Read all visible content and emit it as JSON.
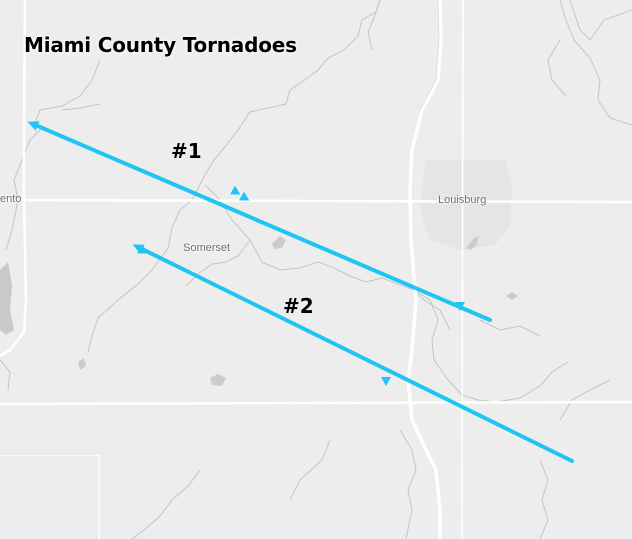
{
  "map": {
    "title": "Miami County Tornadoes",
    "places": {
      "louisburg": "Louisburg",
      "somerset": "Somerset",
      "paola_partial": "ento"
    },
    "tracks": [
      {
        "label": "#1"
      },
      {
        "label": "#2"
      }
    ],
    "colors": {
      "background": "#ededed",
      "track": "#1ec4f4",
      "road": "#ffffff",
      "stream": "#c2c2c2",
      "water": "#c9c9c9",
      "urban": "#e4e4e4"
    },
    "icons": [
      "track-marker-icon"
    ]
  }
}
